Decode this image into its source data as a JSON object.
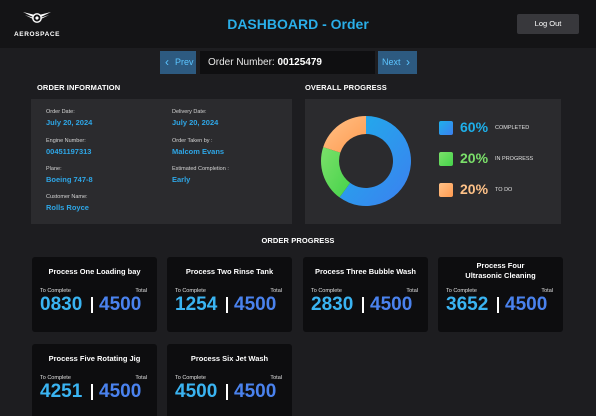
{
  "header": {
    "logo_text": "AEROSPACE",
    "title": "DASHBOARD - Order",
    "logout_label": "Log Out"
  },
  "order_nav": {
    "prev_label": "Prev",
    "next_label": "Next",
    "order_number_label": "Order Number:",
    "order_number": "00125479"
  },
  "order_information": {
    "title": "ORDER INFORMATION",
    "order_date": {
      "label": "Order Date:",
      "value": "July 20, 2024"
    },
    "delivery_date": {
      "label": "Delivery Date:",
      "value": "July 20, 2024"
    },
    "engine_number": {
      "label": "Engine Number:",
      "value": "00451197313"
    },
    "order_taken_by": {
      "label": "Order Taken by :",
      "value": "Malcom Evans"
    },
    "plane": {
      "label": "Plane:",
      "value": "Boeing 747-8"
    },
    "estimated_completion": {
      "label": "Estimated Completion :",
      "value": "Early"
    },
    "customer_name": {
      "label": "Customer Name:",
      "value": "Rolls Royce"
    }
  },
  "overall_progress": {
    "title": "OVERALL PROGRESS",
    "segments": [
      {
        "pct": "60%",
        "label": "COMPLETED",
        "value": 60,
        "color": "#3c7ff0",
        "color2": "#1eb0ea"
      },
      {
        "pct": "20%",
        "label": "IN PROGRESS",
        "value": 20,
        "color": "#45d34a",
        "color2": "#7be06a"
      },
      {
        "pct": "20%",
        "label": "TO DO",
        "value": 20,
        "color": "#ff9a50",
        "color2": "#ffc288"
      }
    ]
  },
  "order_progress": {
    "title": "ORDER PROGRESS",
    "to_complete_label": "To Complete",
    "total_label": "Total",
    "processes": [
      {
        "name": "Process One Loading bay",
        "to_complete": "0830",
        "total": "4500"
      },
      {
        "name": "Process Two Rinse Tank",
        "to_complete": "1254",
        "total": "4500"
      },
      {
        "name": "Process Three Bubble Wash",
        "to_complete": "2830",
        "total": "4500"
      },
      {
        "name": "Process Four\nUltrasonic Cleaning",
        "to_complete": "3652",
        "total": "4500"
      },
      {
        "name": "Process Five Rotating Jig",
        "to_complete": "4251",
        "total": "4500"
      },
      {
        "name": "Process Six Jet Wash",
        "to_complete": "4500",
        "total": "4500"
      }
    ]
  }
}
